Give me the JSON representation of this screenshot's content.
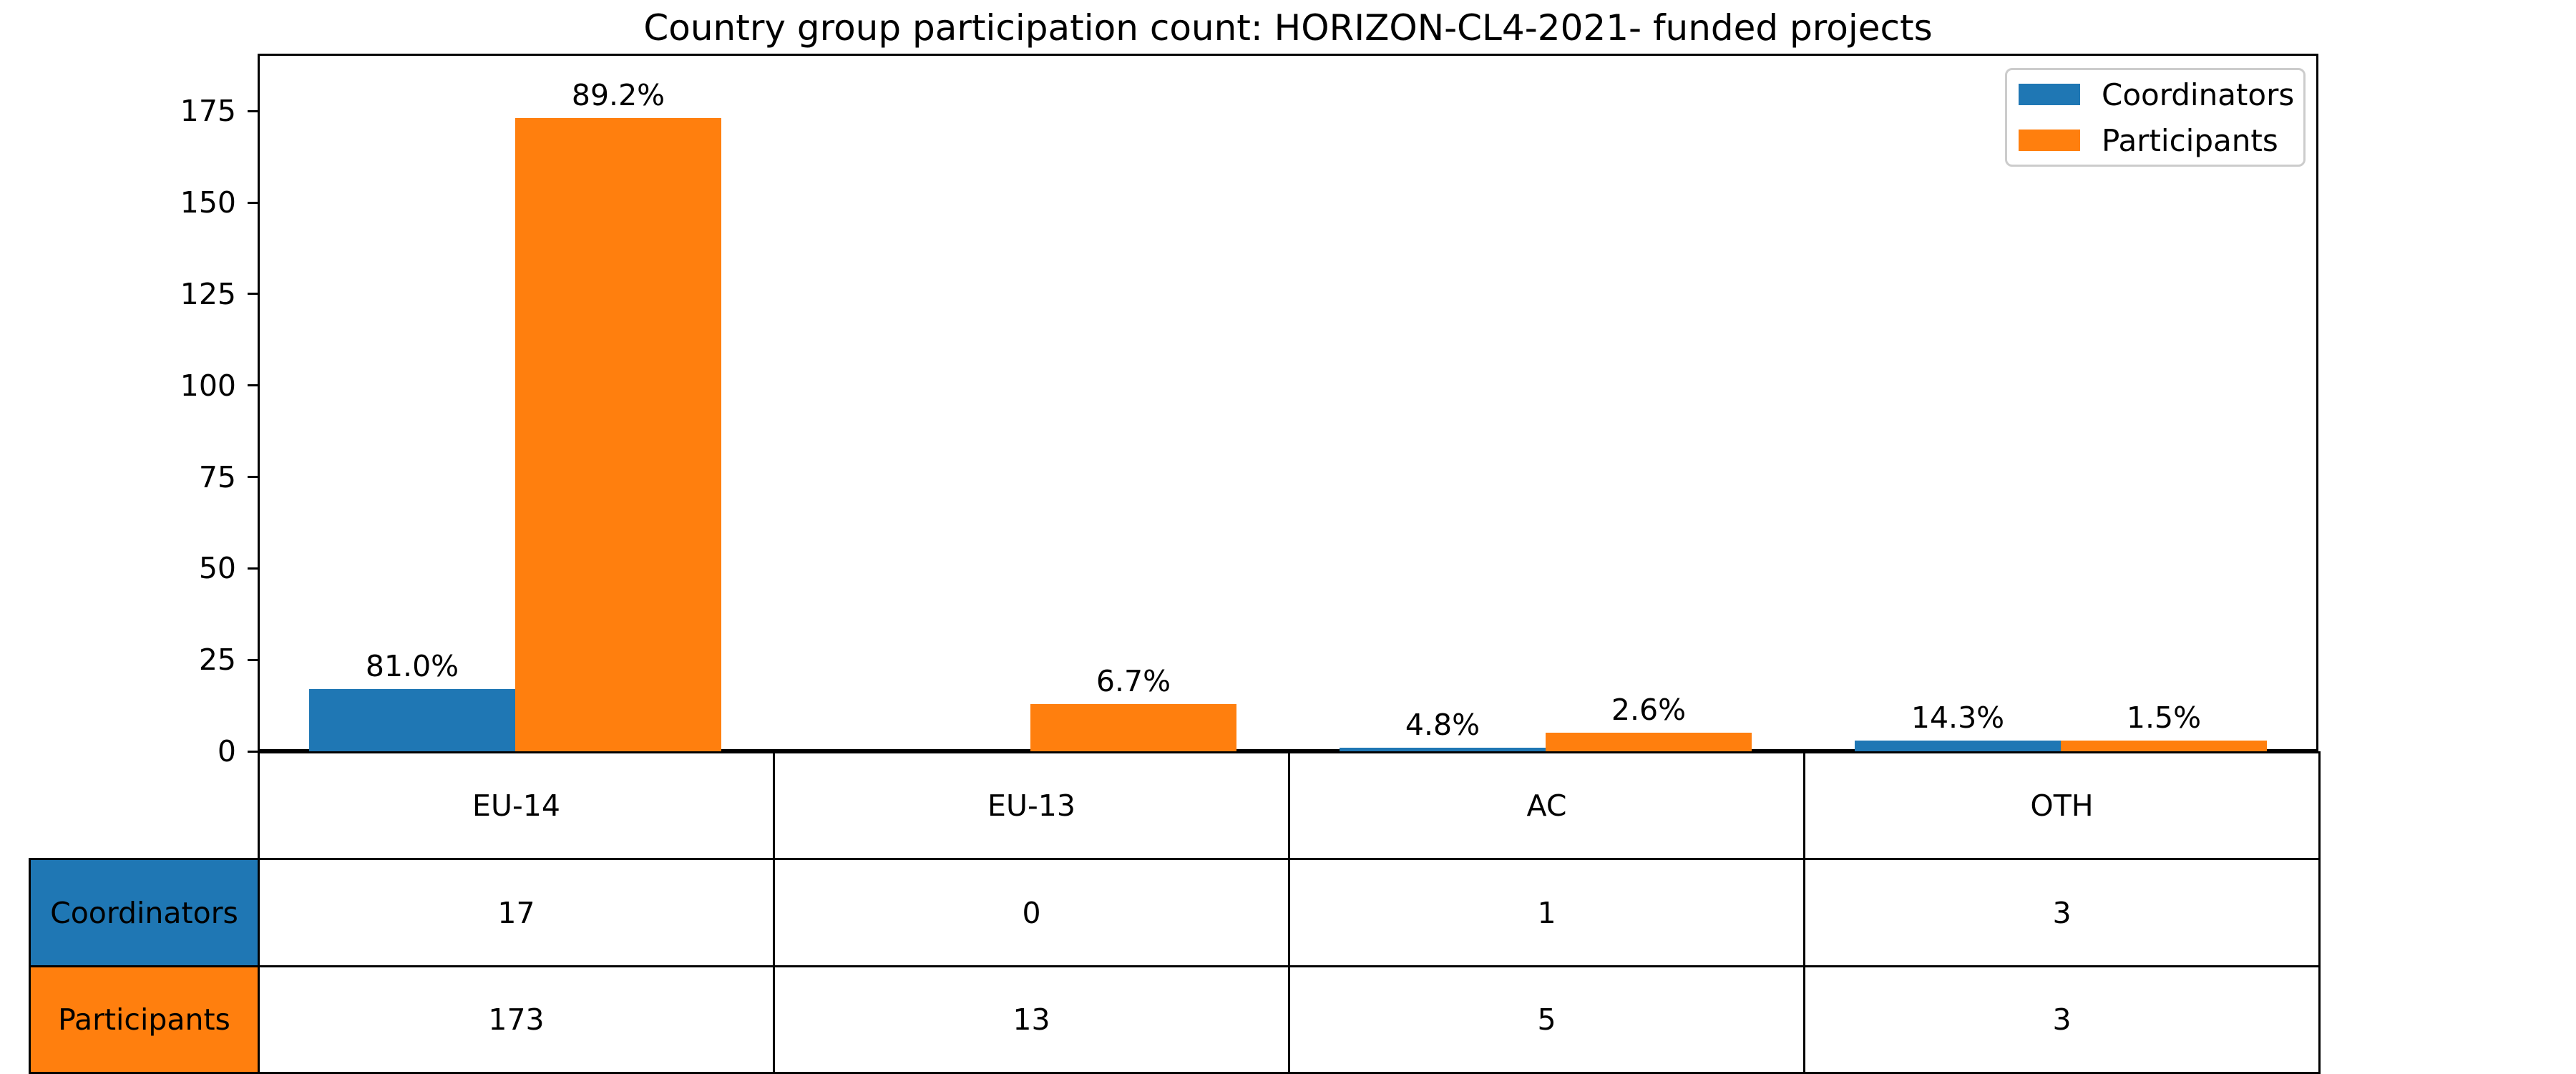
{
  "chart_data": {
    "type": "bar",
    "title": "Country group participation count: HORIZON-CL4-2021- funded projects",
    "categories": [
      "EU-14",
      "EU-13",
      "AC",
      "OTH"
    ],
    "series": [
      {
        "name": "Coordinators",
        "color": "#1f77b4",
        "values": [
          17,
          0,
          1,
          3
        ],
        "pct_labels": [
          "81.0%",
          "",
          "4.8%",
          "14.3%"
        ]
      },
      {
        "name": "Participants",
        "color": "#ff7f0e",
        "values": [
          173,
          13,
          5,
          3
        ],
        "pct_labels": [
          "89.2%",
          "6.7%",
          "2.6%",
          "1.5%"
        ]
      }
    ],
    "yticks": [
      0,
      25,
      50,
      75,
      100,
      125,
      150,
      175
    ],
    "ylim": [
      0,
      190.7
    ],
    "xlabel": "",
    "ylabel": "",
    "grid": false,
    "legend_position": "upper right",
    "bar_width": 0.4
  },
  "table": {
    "columns": [
      "EU-14",
      "EU-13",
      "AC",
      "OTH"
    ],
    "rows": [
      {
        "label": "Coordinators",
        "color": "#1f77b4",
        "values": [
          "17",
          "0",
          "1",
          "3"
        ]
      },
      {
        "label": "Participants",
        "color": "#ff7f0e",
        "values": [
          "173",
          "13",
          "5",
          "3"
        ]
      }
    ]
  }
}
